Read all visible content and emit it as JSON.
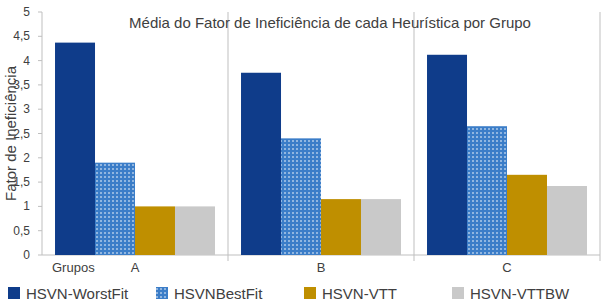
{
  "chart_data": {
    "type": "bar",
    "title": "Média do Fator de Ineficiência de cada Heurística por Grupo",
    "y_label": "Fator de Ineficiência",
    "x_label": "Grupos",
    "categories": [
      "A",
      "B",
      "C"
    ],
    "series": [
      {
        "name": "HSVN-WorstFit",
        "color": "#0f3c8a",
        "values": [
          4.37,
          3.75,
          4.12
        ]
      },
      {
        "name": "HSVNBestFit",
        "color": "#3b7dc8",
        "values": [
          1.9,
          2.4,
          2.65
        ]
      },
      {
        "name": "HSVN-VTT",
        "color": "#bf8f00",
        "values": [
          1.0,
          1.15,
          1.65
        ]
      },
      {
        "name": "HSVN-VTTBW",
        "color": "#c9c9c9",
        "values": [
          1.0,
          1.15,
          1.42
        ]
      }
    ],
    "ylim": [
      0,
      5
    ],
    "yticks": [
      0,
      {
        "value": 0.5,
        "label": "0,5"
      },
      1,
      {
        "value": 1.5,
        "label": "1,5"
      },
      2,
      {
        "value": 2.5,
        "label": "2,5"
      },
      3,
      {
        "value": 3.5,
        "label": "3,5"
      },
      4,
      {
        "value": 4.5,
        "label": "4,5"
      },
      5
    ],
    "grid": false,
    "legend": "bottom"
  }
}
